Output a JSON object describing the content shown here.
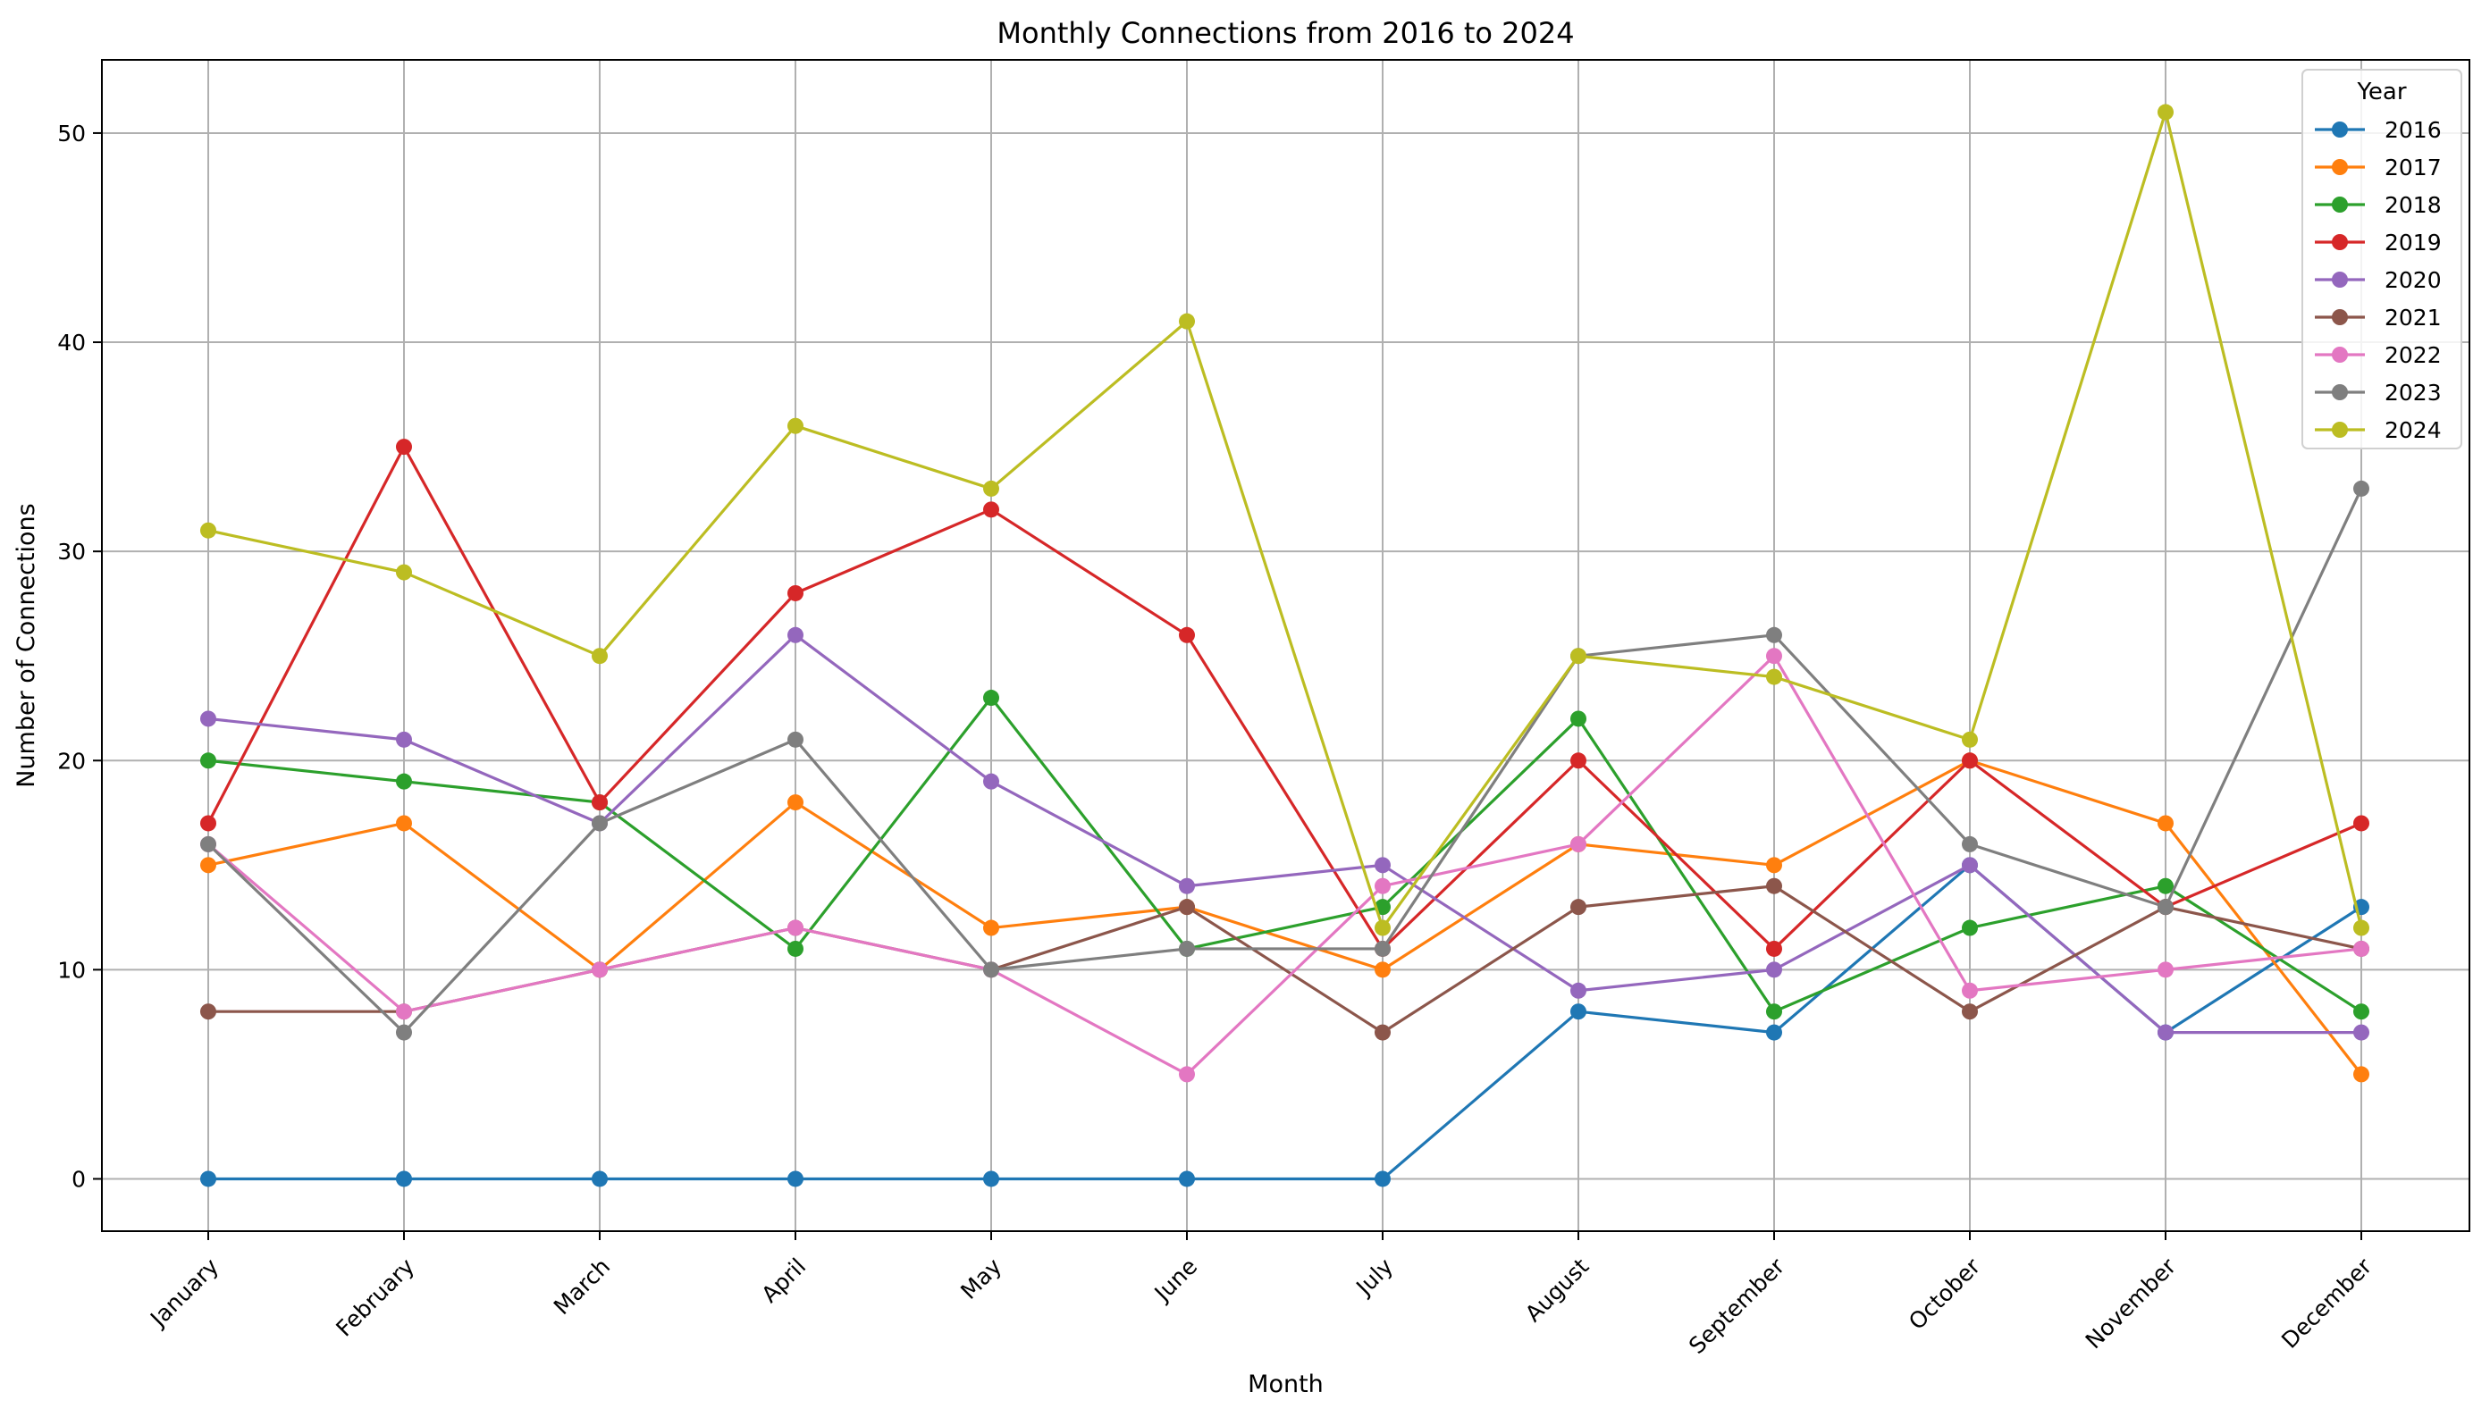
{
  "chart_data": {
    "type": "line",
    "title": "Monthly Connections from 2016 to 2024",
    "xlabel": "Month",
    "ylabel": "Number of Connections",
    "categories": [
      "January",
      "February",
      "March",
      "April",
      "May",
      "June",
      "July",
      "August",
      "September",
      "October",
      "November",
      "December"
    ],
    "ylim": [
      -2.5,
      53.5
    ],
    "yticks": [
      0,
      10,
      20,
      30,
      40,
      50
    ],
    "grid": true,
    "legend": {
      "title": "Year",
      "placement": "top-right"
    },
    "series": [
      {
        "name": "2016",
        "color": "#1f77b4",
        "values": [
          0,
          0,
          0,
          0,
          0,
          0,
          0,
          8,
          7,
          15,
          7,
          13
        ]
      },
      {
        "name": "2017",
        "color": "#ff7f0e",
        "values": [
          15,
          17,
          10,
          18,
          12,
          13,
          10,
          16,
          15,
          20,
          17,
          5
        ]
      },
      {
        "name": "2018",
        "color": "#2ca02c",
        "values": [
          20,
          19,
          18,
          11,
          23,
          11,
          13,
          22,
          8,
          12,
          14,
          8
        ]
      },
      {
        "name": "2019",
        "color": "#d62728",
        "values": [
          17,
          35,
          18,
          28,
          32,
          26,
          11,
          20,
          11,
          20,
          13,
          17
        ]
      },
      {
        "name": "2020",
        "color": "#9467bd",
        "values": [
          22,
          21,
          17,
          26,
          19,
          14,
          15,
          9,
          10,
          15,
          7,
          7
        ]
      },
      {
        "name": "2021",
        "color": "#8c564b",
        "values": [
          8,
          8,
          10,
          12,
          10,
          13,
          7,
          13,
          14,
          8,
          13,
          11
        ]
      },
      {
        "name": "2022",
        "color": "#e377c2",
        "values": [
          16,
          8,
          10,
          12,
          10,
          5,
          14,
          16,
          25,
          9,
          10,
          11
        ]
      },
      {
        "name": "2023",
        "color": "#7f7f7f",
        "values": [
          16,
          7,
          17,
          21,
          10,
          11,
          11,
          25,
          26,
          16,
          13,
          33
        ]
      },
      {
        "name": "2024",
        "color": "#bcbd22",
        "values": [
          31,
          29,
          25,
          36,
          33,
          41,
          12,
          25,
          24,
          21,
          51,
          12
        ]
      }
    ]
  }
}
